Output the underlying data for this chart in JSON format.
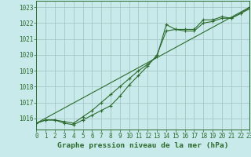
{
  "title": "Graphe pression niveau de la mer (hPa)",
  "bg_color": "#c8eaea",
  "grid_color": "#a8c8c8",
  "line_color": "#2d6b2d",
  "xlim": [
    0,
    23
  ],
  "ylim": [
    1015.3,
    1023.4
  ],
  "yticks": [
    1016,
    1017,
    1018,
    1019,
    1020,
    1021,
    1022,
    1023
  ],
  "xticks": [
    0,
    1,
    2,
    3,
    4,
    5,
    6,
    7,
    8,
    9,
    10,
    11,
    12,
    13,
    14,
    15,
    16,
    17,
    18,
    19,
    20,
    21,
    22,
    23
  ],
  "series1_x": [
    0,
    1,
    2,
    3,
    4,
    5,
    6,
    7,
    8,
    9,
    10,
    11,
    12,
    13,
    14,
    15,
    16,
    17,
    18,
    19,
    20,
    21,
    22,
    23
  ],
  "series1_y": [
    1015.7,
    1015.9,
    1015.9,
    1015.8,
    1015.7,
    1016.1,
    1016.5,
    1017.0,
    1017.5,
    1018.0,
    1018.5,
    1019.0,
    1019.4,
    1019.9,
    1021.9,
    1021.6,
    1021.6,
    1021.6,
    1022.2,
    1022.2,
    1022.4,
    1022.3,
    1022.6,
    1022.9
  ],
  "series2_x": [
    0,
    1,
    2,
    3,
    4,
    5,
    6,
    7,
    8,
    9,
    10,
    11,
    12,
    13,
    14,
    15,
    16,
    17,
    18,
    19,
    20,
    21,
    22,
    23
  ],
  "series2_y": [
    1015.7,
    1015.9,
    1015.9,
    1015.7,
    1015.6,
    1015.9,
    1016.2,
    1016.5,
    1016.8,
    1017.4,
    1018.1,
    1018.7,
    1019.3,
    1020.0,
    1021.5,
    1021.6,
    1021.5,
    1021.5,
    1022.0,
    1022.1,
    1022.3,
    1022.3,
    1022.6,
    1023.0
  ],
  "series3_x": [
    0,
    23
  ],
  "series3_y": [
    1015.7,
    1023.0
  ],
  "tick_fontsize": 5.5,
  "title_fontsize": 6.8
}
